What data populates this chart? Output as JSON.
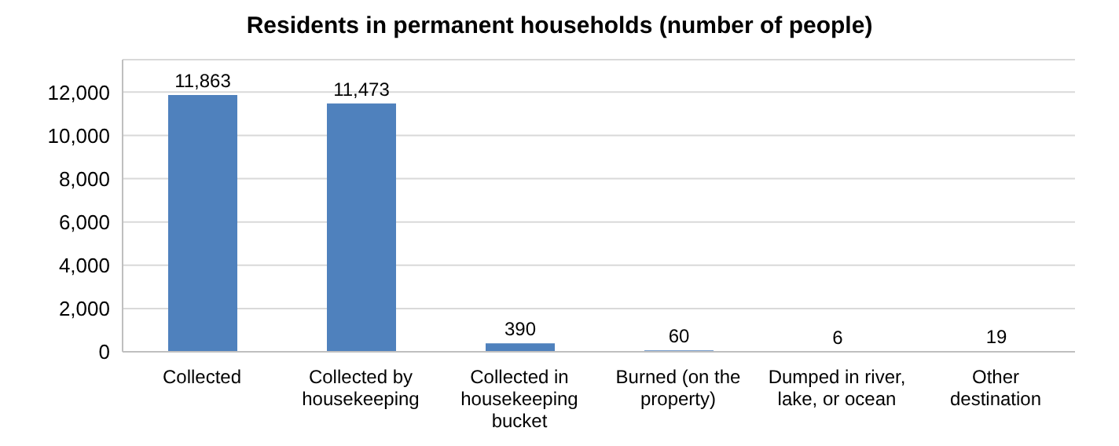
{
  "chart_data": {
    "type": "bar",
    "title": "Residents in permanent households (number of people)",
    "categories": [
      "Collected",
      "Collected by housekeeping",
      "Collected in housekeeping bucket",
      "Burned (on the property)",
      "Dumped in river, lake, or ocean",
      "Other destination"
    ],
    "values": [
      11863,
      11473,
      390,
      60,
      6,
      19
    ],
    "color": "#4f81bd",
    "ylim": [
      0,
      13500
    ],
    "yticks": [
      0,
      {
        "value": 2000,
        "label": "2,000"
      },
      {
        "value": 4000,
        "label": "4,000"
      },
      {
        "value": 6000,
        "label": "6,000"
      },
      {
        "value": 8000,
        "label": "8,000"
      },
      {
        "value": 10000,
        "label": "10,000"
      },
      {
        "value": 12000,
        "label": "12,000"
      }
    ],
    "value_labels": [
      "11,863",
      "11,473",
      "390",
      "60",
      "6",
      "19"
    ],
    "grid": "y",
    "legend": false
  }
}
